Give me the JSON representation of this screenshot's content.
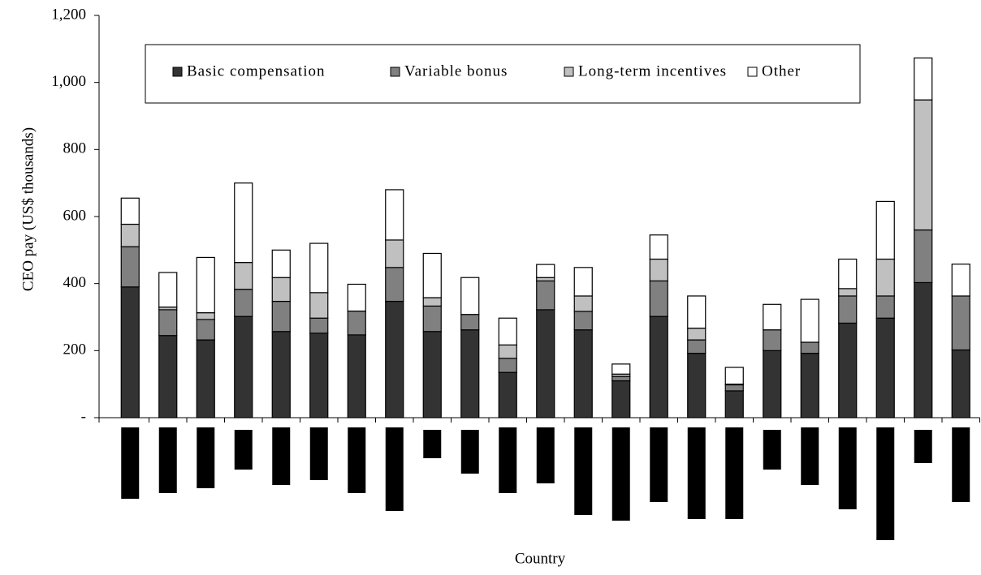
{
  "chart_data": {
    "type": "stacked_bar",
    "y_label": "CEO pay (US$ thousands)",
    "x_label": "Country",
    "categories": [
      null,
      null,
      null,
      null,
      null,
      null,
      null,
      null,
      null,
      null,
      null,
      null,
      null,
      null,
      null,
      null,
      null,
      null,
      null,
      null,
      null,
      null,
      null
    ],
    "series": [
      {
        "name": "Basic compensation",
        "color": "#333333",
        "values": [
          390,
          245,
          232,
          302,
          257,
          252,
          247,
          347,
          257,
          262,
          135,
          322,
          262,
          110,
          302,
          192,
          80,
          200,
          192,
          282,
          297,
          403,
          202
        ]
      },
      {
        "name": "Variable bonus",
        "color": "#808080",
        "values": [
          120,
          77,
          61,
          81,
          90,
          45,
          71,
          101,
          76,
          46,
          42,
          86,
          55,
          13,
          106,
          40,
          18,
          62,
          33,
          81,
          66,
          157,
          161
        ]
      },
      {
        "name": "Long-term incentives",
        "color": "#c0c0c0",
        "values": [
          67,
          8,
          20,
          80,
          71,
          76,
          0,
          82,
          25,
          0,
          40,
          10,
          46,
          7,
          65,
          35,
          2,
          0,
          0,
          22,
          110,
          388,
          0
        ]
      },
      {
        "name": "Other",
        "color": "#ffffff",
        "values": [
          78,
          103,
          165,
          237,
          82,
          147,
          80,
          150,
          132,
          110,
          80,
          39,
          85,
          30,
          72,
          96,
          50,
          76,
          128,
          88,
          172,
          125,
          95
        ]
      }
    ],
    "ylim": [
      0,
      1200
    ],
    "yticks": [
      {
        "value": 0,
        "label": "-"
      },
      200,
      400,
      600,
      800,
      {
        "value": 1000,
        "label": "1,000"
      },
      {
        "value": 1200,
        "label": "1,200"
      }
    ],
    "legend": "top"
  }
}
